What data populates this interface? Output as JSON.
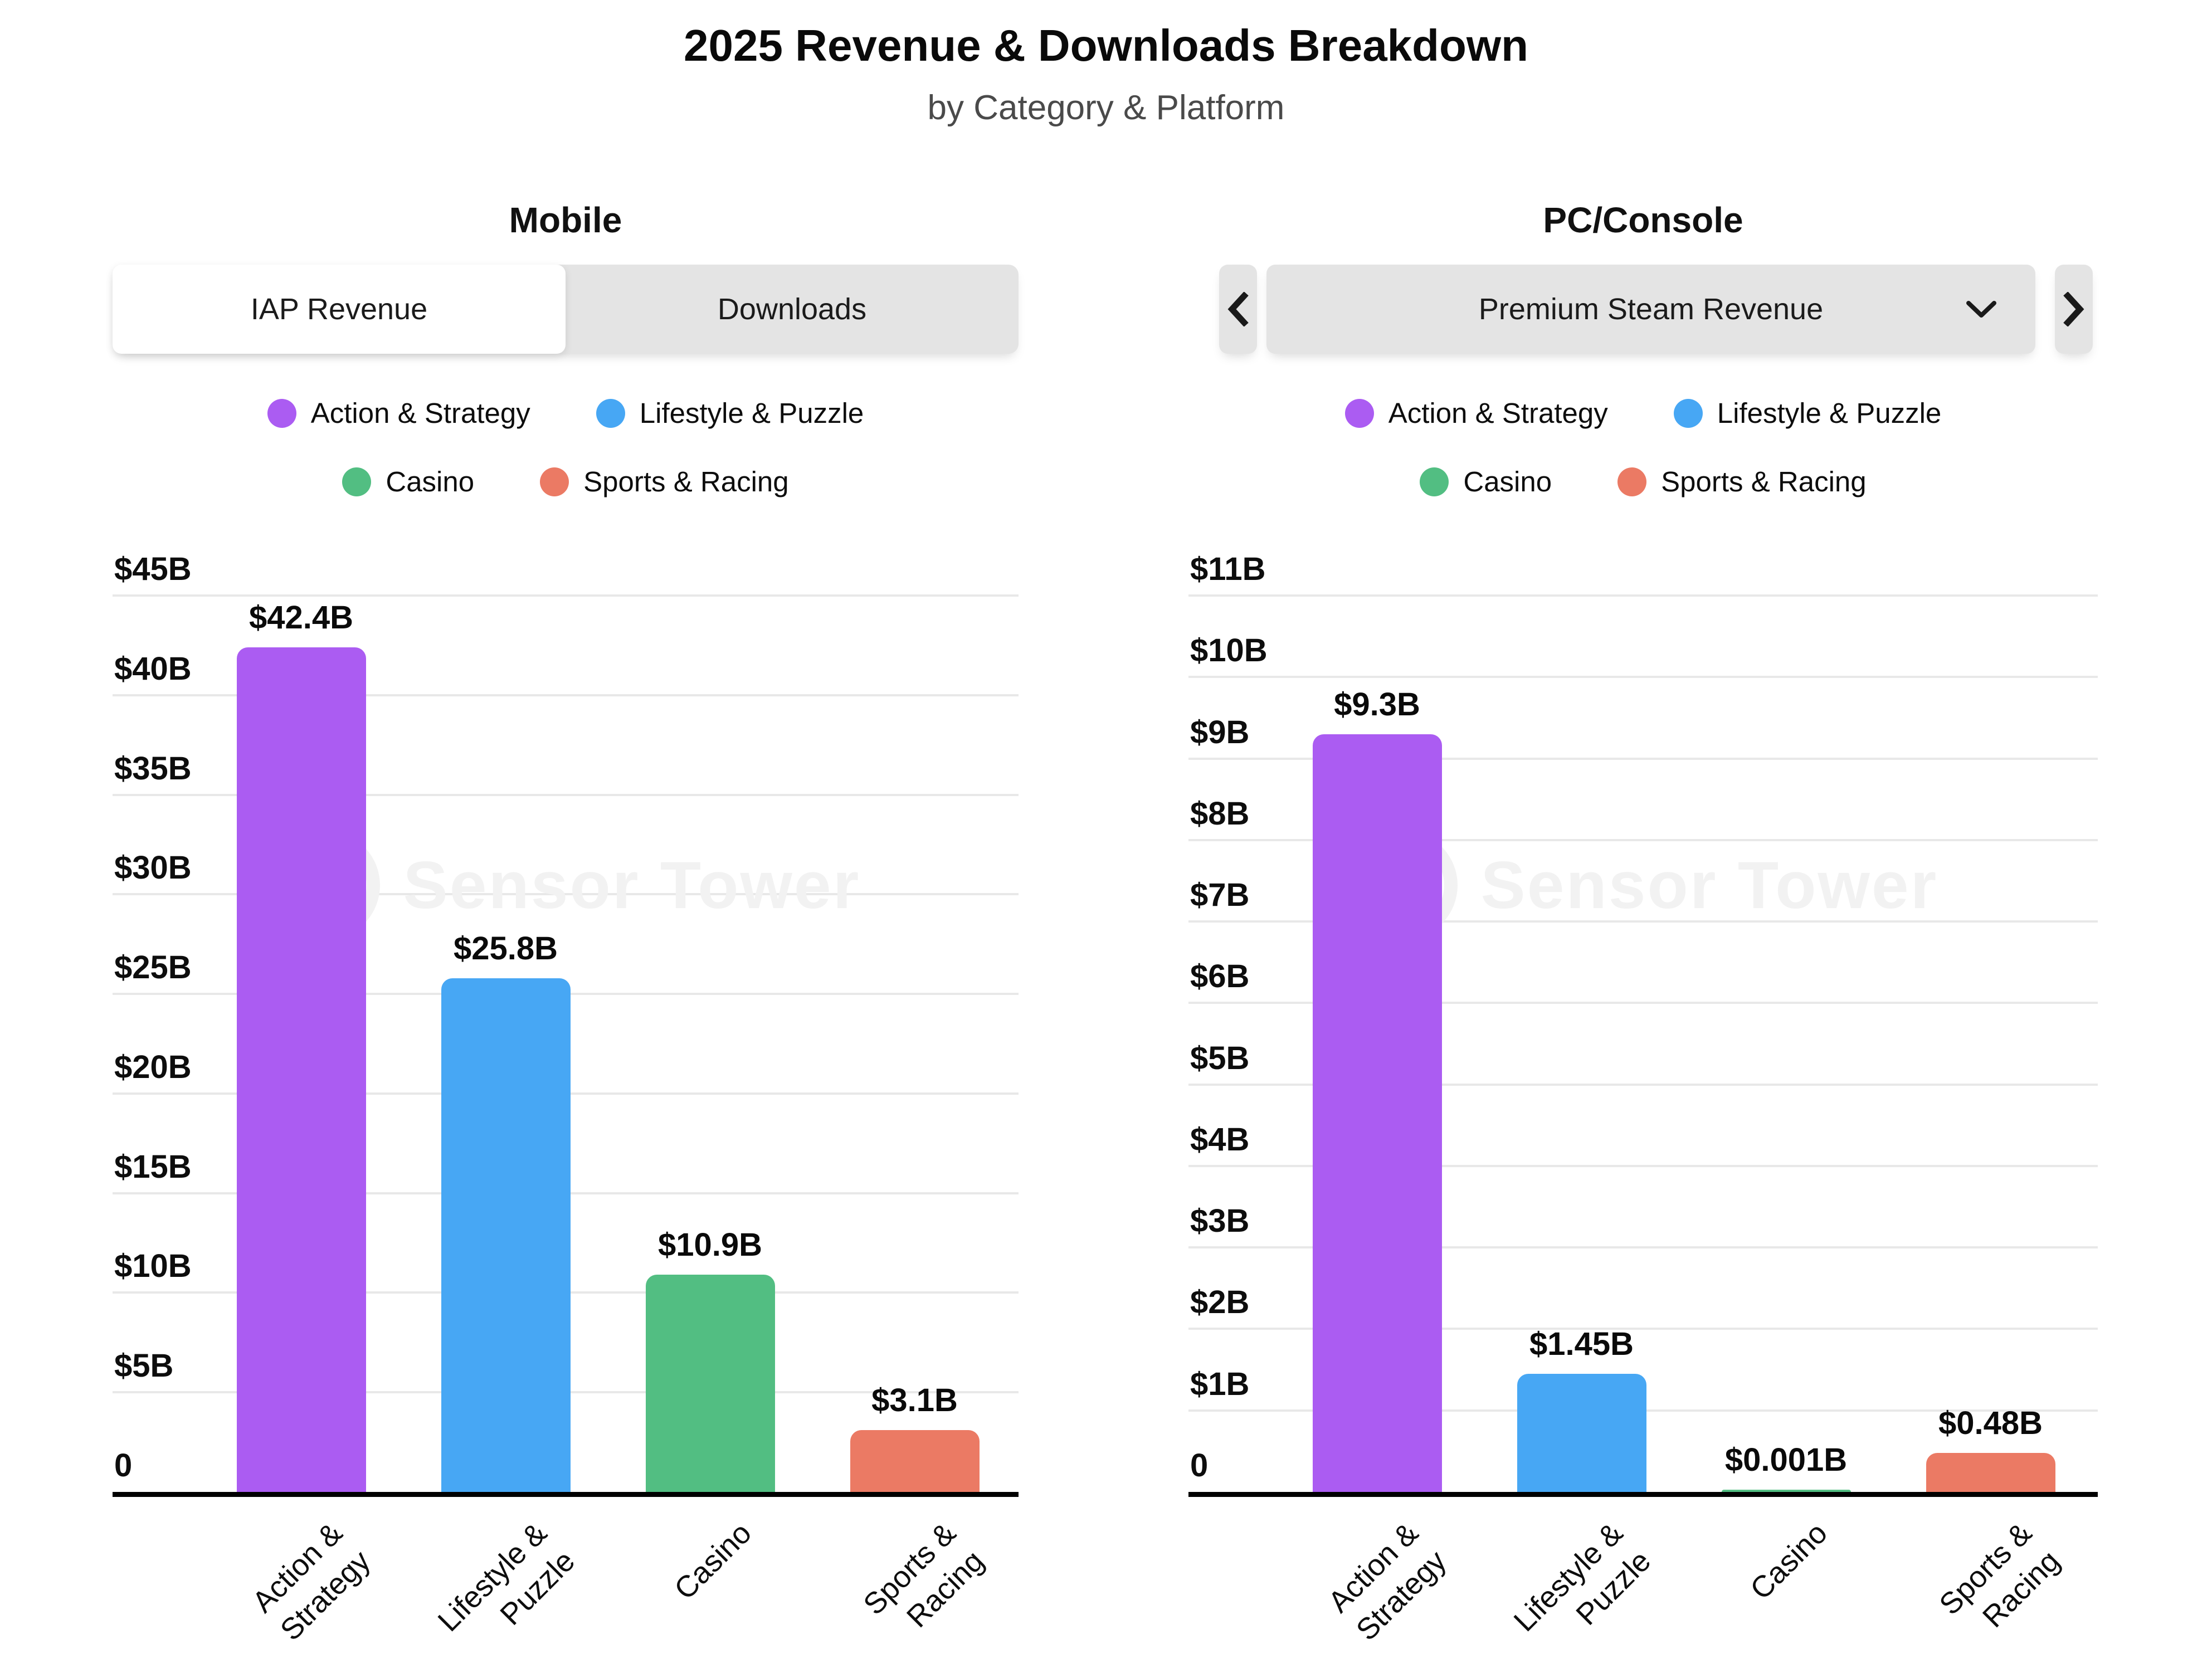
{
  "header": {
    "title": "2025 Revenue & Downloads Breakdown",
    "subtitle": "by Category & Platform"
  },
  "watermark": {
    "text": "Sensor Tower"
  },
  "colors": {
    "purple": "#AB5CF2",
    "blue": "#47A7F4",
    "green": "#52BE82",
    "salmon": "#EB7A64",
    "control_bg": "#E4E4E4",
    "gridline": "#E8E8E8",
    "axis": "#000000",
    "subtitle_text": "#4A4A4A",
    "watermark_text": "#F2F2F2"
  },
  "legend": [
    {
      "label": "Action & Strategy",
      "color": "#AB5CF2"
    },
    {
      "label": "Lifestyle & Puzzle",
      "color": "#47A7F4"
    },
    {
      "label": "Casino",
      "color": "#52BE82"
    },
    {
      "label": "Sports & Racing",
      "color": "#EB7A64"
    }
  ],
  "legend_rows": [
    [
      0,
      1
    ],
    [
      2,
      3
    ]
  ],
  "charts": [
    {
      "title": "Mobile",
      "control": {
        "type": "tabs",
        "tabs": [
          {
            "label": "IAP Revenue",
            "active": true
          },
          {
            "label": "Downloads",
            "active": false
          }
        ]
      }
    },
    {
      "title": "PC/Console",
      "control": {
        "type": "carousel",
        "selected": "Premium Steam Revenue",
        "prev_icon": "chevron-left",
        "next_icon": "chevron-right"
      }
    }
  ],
  "chart_data": [
    {
      "type": "bar",
      "title": "Mobile",
      "metric": "IAP Revenue",
      "unit": "USD billions",
      "categories": [
        "Action & Strategy",
        "Lifestyle & Puzzle",
        "Casino",
        "Sports & Racing"
      ],
      "category_lines": [
        [
          "Action &",
          "Strategy"
        ],
        [
          "Lifestyle &",
          "Puzzle"
        ],
        [
          "Casino"
        ],
        [
          "Sports &",
          "Racing"
        ]
      ],
      "values": [
        42.4,
        25.8,
        10.9,
        3.1
      ],
      "value_labels": [
        "$42.4B",
        "$25.8B",
        "$10.9B",
        "$3.1B"
      ],
      "bar_colors": [
        "#AB5CF2",
        "#47A7F4",
        "#52BE82",
        "#EB7A64"
      ],
      "ylim": [
        0,
        45
      ],
      "ytick_step": 5,
      "ytick_labels": [
        "$5B",
        "$10B",
        "$15B",
        "$20B",
        "$25B",
        "$30B",
        "$35B",
        "$40B",
        "$45B"
      ],
      "zero_label": "0",
      "grid": true,
      "legend_position": "top"
    },
    {
      "type": "bar",
      "title": "PC/Console",
      "metric": "Premium Steam Revenue",
      "unit": "USD billions",
      "categories": [
        "Action & Strategy",
        "Lifestyle & Puzzle",
        "Casino",
        "Sports & Racing"
      ],
      "category_lines": [
        [
          "Action &",
          "Strategy"
        ],
        [
          "Lifestyle &",
          "Puzzle"
        ],
        [
          "Casino"
        ],
        [
          "Sports &",
          "Racing"
        ]
      ],
      "values": [
        9.3,
        1.45,
        0.001,
        0.48
      ],
      "value_labels": [
        "$9.3B",
        "$1.45B",
        "$0.001B",
        "$0.48B"
      ],
      "bar_colors": [
        "#AB5CF2",
        "#47A7F4",
        "#52BE82",
        "#EB7A64"
      ],
      "ylim": [
        0,
        11
      ],
      "ytick_step": 1,
      "ytick_labels": [
        "$1B",
        "$2B",
        "$3B",
        "$4B",
        "$5B",
        "$6B",
        "$7B",
        "$8B",
        "$9B",
        "$10B",
        "$11B"
      ],
      "zero_label": "0",
      "grid": true,
      "legend_position": "top"
    }
  ]
}
